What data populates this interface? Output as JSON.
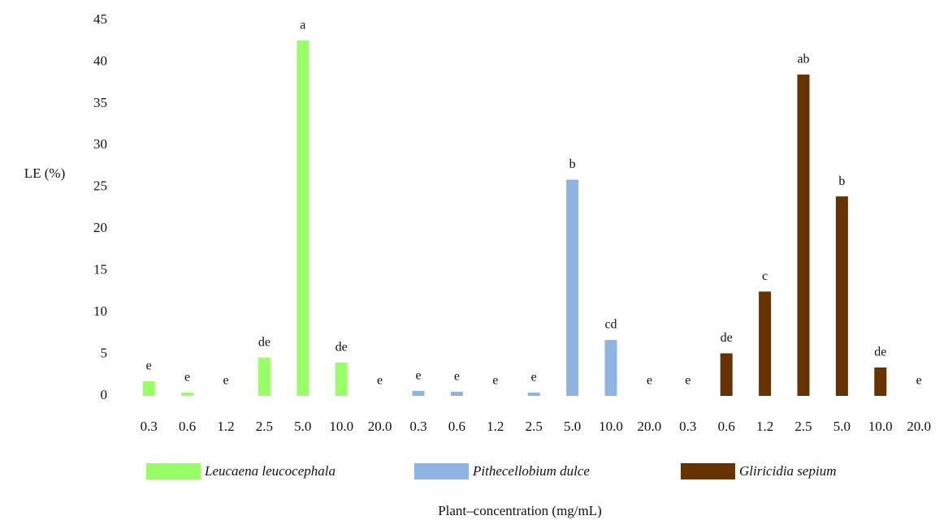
{
  "chart_data": {
    "type": "bar",
    "y_label": "LE (%)",
    "x_label": "Plant–concentration (mg/mL)",
    "categories": [
      "0.3",
      "0.6",
      "1.2",
      "2.5",
      "5.0",
      "10.0",
      "20.0",
      "0.3",
      "0.6",
      "1.2",
      "2.5",
      "5.0",
      "10.0",
      "20.0",
      "0.3",
      "0.6",
      "1.2",
      "2.5",
      "5.0",
      "10.0",
      "20.0"
    ],
    "series": [
      {
        "name": "Leucaena leucocephala",
        "color": "#99ff66",
        "values": [
          1.75,
          0.4,
          0,
          4.6,
          42.6,
          4.0,
          0,
          null,
          null,
          null,
          null,
          null,
          null,
          null,
          null,
          null,
          null,
          null,
          null,
          null,
          null
        ],
        "letters": [
          "e",
          "e",
          "e",
          "de",
          "a",
          "de",
          "e",
          null,
          null,
          null,
          null,
          null,
          null,
          null,
          null,
          null,
          null,
          null,
          null,
          null,
          null
        ]
      },
      {
        "name": "Pithecellobium dulce",
        "color": "#8eb4e3",
        "values": [
          null,
          null,
          null,
          null,
          null,
          null,
          null,
          0.6,
          0.5,
          0,
          0.4,
          25.9,
          6.7,
          0,
          null,
          null,
          null,
          null,
          null,
          null,
          null
        ],
        "letters": [
          null,
          null,
          null,
          null,
          null,
          null,
          null,
          "e",
          "e",
          "e",
          "e",
          "b",
          "cd",
          "e",
          null,
          null,
          null,
          null,
          null,
          null,
          null
        ]
      },
      {
        "name": "Gliricidia sepium",
        "color": "#663300",
        "values": [
          null,
          null,
          null,
          null,
          null,
          null,
          null,
          null,
          null,
          null,
          null,
          null,
          null,
          null,
          0,
          5.1,
          12.5,
          38.5,
          23.9,
          3.4,
          0
        ],
        "letters": [
          null,
          null,
          null,
          null,
          null,
          null,
          null,
          null,
          null,
          null,
          null,
          null,
          null,
          null,
          "e",
          "de",
          "c",
          "ab",
          "b",
          "de",
          "e"
        ]
      }
    ],
    "ylim": [
      0,
      45
    ],
    "yticks": [
      0,
      5,
      10,
      15,
      20,
      25,
      30,
      35,
      40,
      45
    ],
    "grid": false
  }
}
